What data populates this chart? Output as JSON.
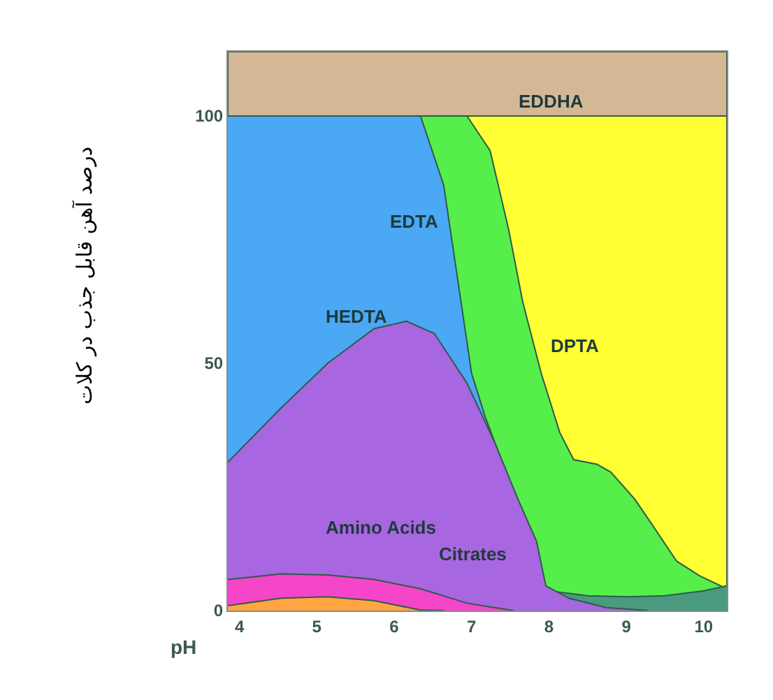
{
  "chart_data": {
    "type": "area",
    "xlabel": "pH",
    "ylabel": "درصد آهن قابل جذب در کلات",
    "xlim": [
      3.85,
      10.3
    ],
    "ylim": [
      0,
      113
    ],
    "xticks": [
      4,
      5,
      6,
      7,
      8,
      9,
      10
    ],
    "yticks": [
      0,
      50,
      100
    ],
    "series": [
      {
        "color": "#55ee4a",
        "x": [
          6.34,
          6.94,
          7.24,
          7.48,
          7.66,
          7.9,
          8.14,
          8.32,
          8.62,
          8.8,
          9.11,
          9.35,
          9.65,
          9.95,
          10.3
        ],
        "values": [
          100,
          100,
          93,
          77,
          62.5,
          48,
          36,
          30.5,
          29.6,
          28,
          22.5,
          17,
          10,
          7,
          4.4
        ]
      },
      {
        "color": "#4aa8f5",
        "x": [
          3.85,
          6.34,
          6.64,
          6.82,
          7.0,
          7.18,
          7.42,
          7.66,
          7.84
        ],
        "values": [
          100,
          100,
          86,
          67,
          48,
          39,
          29,
          20,
          12
        ]
      },
      {
        "color": "#4a9a80",
        "x": [
          7.96,
          8.0,
          8.5,
          9.0,
          9.5,
          10.0,
          10.3
        ],
        "values": [
          5,
          4,
          3,
          2.8,
          3,
          4,
          5
        ]
      },
      {
        "color": "#a866e0",
        "x": [
          3.85,
          4.54,
          5.14,
          5.74,
          6.16,
          6.52,
          6.94,
          7.3,
          7.6,
          7.84,
          7.96,
          8.26,
          8.74,
          9.28
        ],
        "values": [
          30,
          41,
          50,
          57,
          58.5,
          56,
          46,
          34,
          22.5,
          14,
          5,
          2.5,
          0.6,
          0
        ]
      },
      {
        "color": "#f545c8",
        "x": [
          3.85,
          4.54,
          5.14,
          5.74,
          6.34,
          6.94,
          7.54
        ],
        "values": [
          6.3,
          7.4,
          7.2,
          6.3,
          4.4,
          1.5,
          0
        ]
      },
      {
        "color": "#ffa640",
        "x": [
          3.85,
          4.54,
          5.14,
          5.74,
          6.34,
          6.64
        ],
        "values": [
          1,
          2.5,
          2.8,
          2,
          0.1,
          0
        ]
      }
    ],
    "bands": [
      {
        "axis": "y",
        "from": 100,
        "to": 113,
        "color": "#d4b896"
      },
      {
        "axis": "y",
        "from": 0,
        "to": 100,
        "color": "#ffff33"
      }
    ],
    "annotations": [
      "EDDHA",
      "EDTA",
      "HEDTA",
      "DPTA",
      "Amino Acids",
      "Citrates"
    ]
  }
}
